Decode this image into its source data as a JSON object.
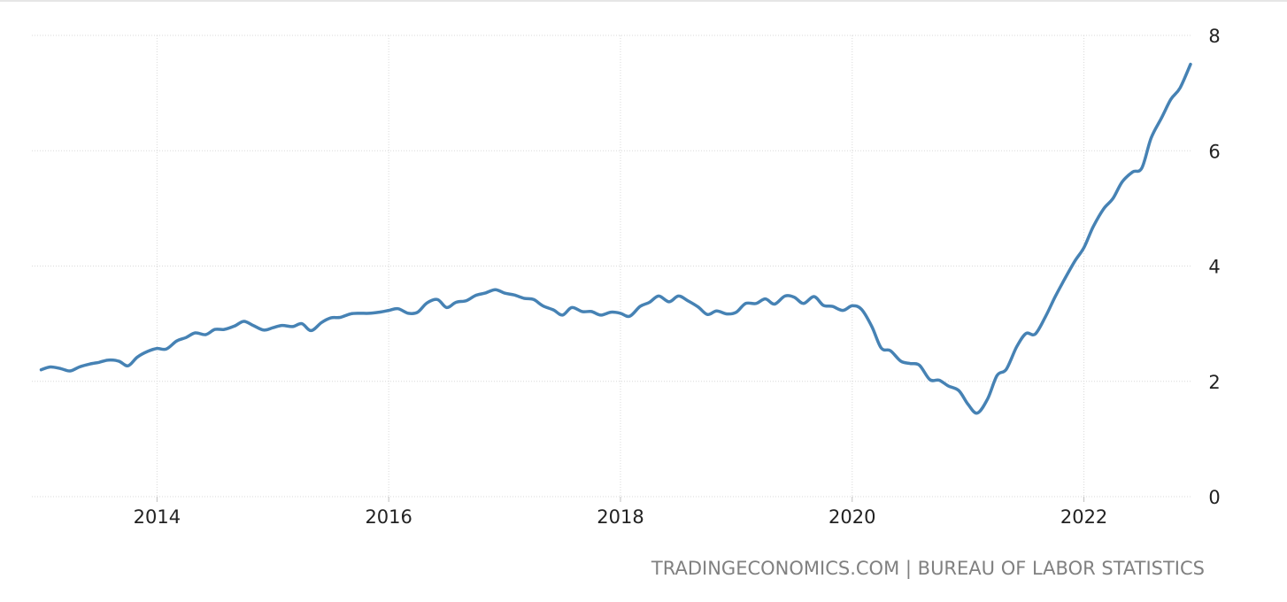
{
  "source": {
    "site": "TRADINGECONOMICS.COM",
    "separator": "|",
    "agency": "BUREAU OF LABOR STATISTICS"
  },
  "colors": {
    "line": "#4682b4",
    "grid": "#d9d9d9",
    "text": "#222222",
    "source_text": "#808080"
  },
  "chart_data": {
    "type": "line",
    "title": "",
    "xlabel": "",
    "ylabel": "",
    "x_ticks": [
      {
        "label": "2014",
        "value": 2014.0
      },
      {
        "label": "2016",
        "value": 2016.0
      },
      {
        "label": "2018",
        "value": 2018.0
      },
      {
        "label": "2020",
        "value": 2020.0
      },
      {
        "label": "2022",
        "value": 2022.0
      }
    ],
    "y_ticks": [
      0,
      2,
      4,
      6,
      8
    ],
    "xlim": [
      2012.92,
      2022.92
    ],
    "ylim": [
      0,
      8
    ],
    "grid": true,
    "y_axis_side": "right",
    "series": [
      {
        "name": "",
        "x": [
          2013.0,
          2013.08,
          2013.17,
          2013.25,
          2013.33,
          2013.42,
          2013.5,
          2013.58,
          2013.67,
          2013.75,
          2013.83,
          2013.92,
          2014.0,
          2014.08,
          2014.17,
          2014.25,
          2014.33,
          2014.42,
          2014.5,
          2014.58,
          2014.67,
          2014.75,
          2014.83,
          2014.92,
          2015.0,
          2015.08,
          2015.17,
          2015.25,
          2015.33,
          2015.42,
          2015.5,
          2015.58,
          2015.67,
          2015.75,
          2015.83,
          2015.92,
          2016.0,
          2016.08,
          2016.17,
          2016.25,
          2016.33,
          2016.42,
          2016.5,
          2016.58,
          2016.67,
          2016.75,
          2016.83,
          2016.92,
          2017.0,
          2017.08,
          2017.17,
          2017.25,
          2017.33,
          2017.42,
          2017.5,
          2017.58,
          2017.67,
          2017.75,
          2017.83,
          2017.92,
          2018.0,
          2018.08,
          2018.17,
          2018.25,
          2018.33,
          2018.42,
          2018.5,
          2018.58,
          2018.67,
          2018.75,
          2018.83,
          2018.92,
          2019.0,
          2019.08,
          2019.17,
          2019.25,
          2019.33,
          2019.42,
          2019.5,
          2019.58,
          2019.67,
          2019.75,
          2019.83,
          2019.92,
          2020.0,
          2020.08,
          2020.17,
          2020.25,
          2020.33,
          2020.42,
          2020.5,
          2020.58,
          2020.67,
          2020.75,
          2020.83,
          2020.92,
          2021.0,
          2021.08,
          2021.17,
          2021.25,
          2021.33,
          2021.42,
          2021.5,
          2021.58,
          2021.67,
          2021.75,
          2021.83,
          2021.92,
          2022.0,
          2022.08,
          2022.17,
          2022.25,
          2022.33,
          2022.42,
          2022.5,
          2022.58,
          2022.67,
          2022.75,
          2022.83,
          2022.92
        ],
        "values": [
          2.2,
          2.25,
          2.22,
          2.18,
          2.25,
          2.3,
          2.33,
          2.37,
          2.35,
          2.27,
          2.42,
          2.52,
          2.57,
          2.56,
          2.7,
          2.76,
          2.84,
          2.81,
          2.9,
          2.9,
          2.96,
          3.04,
          2.97,
          2.89,
          2.93,
          2.97,
          2.95,
          3.0,
          2.88,
          3.02,
          3.1,
          3.11,
          3.17,
          3.18,
          3.18,
          3.2,
          3.23,
          3.26,
          3.18,
          3.2,
          3.36,
          3.42,
          3.28,
          3.37,
          3.4,
          3.49,
          3.53,
          3.59,
          3.53,
          3.5,
          3.44,
          3.42,
          3.31,
          3.24,
          3.15,
          3.28,
          3.21,
          3.21,
          3.15,
          3.2,
          3.18,
          3.13,
          3.3,
          3.37,
          3.48,
          3.38,
          3.48,
          3.4,
          3.29,
          3.16,
          3.22,
          3.17,
          3.2,
          3.35,
          3.35,
          3.43,
          3.34,
          3.48,
          3.46,
          3.35,
          3.47,
          3.32,
          3.3,
          3.23,
          3.31,
          3.25,
          2.95,
          2.58,
          2.53,
          2.35,
          2.31,
          2.28,
          2.03,
          2.02,
          1.92,
          1.84,
          1.6,
          1.45,
          1.7,
          2.1,
          2.21,
          2.6,
          2.83,
          2.82,
          3.13,
          3.46,
          3.76,
          4.08,
          4.32,
          4.68,
          4.99,
          5.17,
          5.46,
          5.63,
          5.7,
          6.22,
          6.57,
          6.89,
          7.09,
          7.5
        ]
      }
    ]
  }
}
